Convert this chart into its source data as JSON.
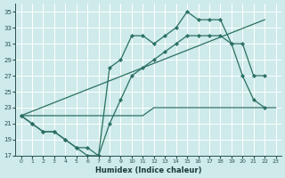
{
  "xlabel": "Humidex (Indice chaleur)",
  "bg_color": "#ceeaea",
  "line_color": "#2a7060",
  "xlim": [
    -0.5,
    23.5
  ],
  "ylim": [
    17,
    36
  ],
  "yticks": [
    17,
    19,
    21,
    23,
    25,
    27,
    29,
    31,
    33,
    35
  ],
  "xticks": [
    0,
    1,
    2,
    3,
    4,
    5,
    6,
    7,
    8,
    9,
    10,
    11,
    12,
    13,
    14,
    15,
    16,
    17,
    18,
    19,
    20,
    21,
    22,
    23
  ],
  "series": [
    {
      "x": [
        0,
        1,
        2,
        3,
        4,
        5,
        6,
        7,
        8,
        9,
        10,
        11,
        12,
        13,
        14,
        15,
        16,
        17,
        18,
        19,
        20,
        21,
        22,
        23
      ],
      "y": [
        22,
        22,
        22,
        22,
        22,
        22,
        22,
        22,
        22,
        22,
        22,
        22,
        23,
        23,
        23,
        23,
        23,
        23,
        23,
        23,
        23,
        23,
        23,
        23
      ],
      "has_markers": false
    },
    {
      "x": [
        0,
        1,
        2,
        3,
        4,
        5,
        6,
        7,
        8,
        9,
        10,
        11,
        12,
        13,
        14,
        15,
        16,
        17,
        18,
        19,
        20,
        21,
        22
      ],
      "y": [
        22,
        21,
        20,
        20,
        19,
        18,
        18,
        17,
        21,
        24,
        27,
        28,
        29,
        30,
        31,
        32,
        32,
        32,
        32,
        31,
        31,
        27,
        27
      ],
      "has_markers": true
    },
    {
      "x": [
        0,
        1,
        2,
        3,
        4,
        5,
        6,
        7,
        8,
        9,
        10,
        11,
        12,
        13,
        14,
        15,
        16,
        17,
        18,
        19,
        20,
        21,
        22
      ],
      "y": [
        22,
        21,
        20,
        20,
        19,
        18,
        17,
        17,
        28,
        29,
        32,
        32,
        31,
        32,
        33,
        35,
        34,
        34,
        34,
        31,
        27,
        24,
        23
      ],
      "has_markers": true
    },
    {
      "comment": "diagonal: (0,22) -> (22,34)",
      "x": [
        0,
        22
      ],
      "y": [
        22,
        34
      ],
      "has_markers": false
    }
  ]
}
